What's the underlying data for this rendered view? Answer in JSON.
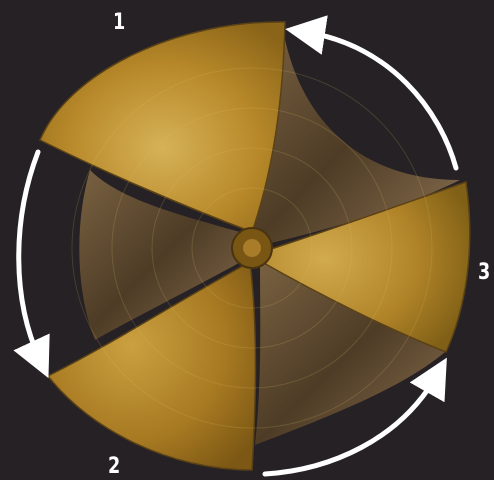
{
  "labels": {
    "one": "1",
    "two": "2",
    "three": "3"
  },
  "colors": {
    "background": "#252124",
    "brass_light": "#c9a448",
    "brass_mid": "#b8892a",
    "brass_dark": "#8a6418",
    "flute_shadow": "#4a3a24",
    "arrow": "#ffffff"
  }
}
